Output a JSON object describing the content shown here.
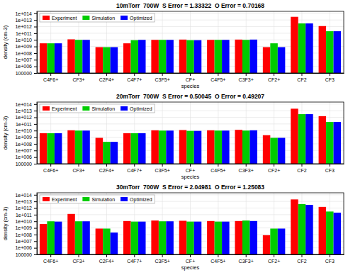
{
  "chart_data": [
    {
      "type": "bar",
      "title": "10mTorr  700W  S Error = 1.33322  O Error = 0.70168",
      "categories": [
        "C4F6+",
        "CF3+",
        "C2F4+",
        "C4F7+",
        "C3F5+",
        "CF+",
        "C4F5+",
        "C3F3+",
        "CF2+",
        "CF2",
        "CF3"
      ],
      "series": [
        {
          "name": "Experiment",
          "color": "#ff0000",
          "values": [
            3000000000.0,
            12000000000.0,
            800000000.0,
            3000000000.0,
            10000000000.0,
            11000000000.0,
            10000000000.0,
            11000000000.0,
            800000000.0,
            30000000000000.0,
            1200000000000.0
          ]
        },
        {
          "name": "Simulation",
          "color": "#00cc00",
          "values": [
            3000000000.0,
            10000000000.0,
            800000000.0,
            9000000000.0,
            10000000000.0,
            9000000000.0,
            10000000000.0,
            10000000000.0,
            3000000000.0,
            3000000000000.0,
            200000000000.0
          ]
        },
        {
          "name": "Optimized",
          "color": "#0000ff",
          "values": [
            3000000000.0,
            10000000000.0,
            800000000.0,
            10000000000.0,
            10000000000.0,
            9000000000.0,
            10000000000.0,
            11000000000.0,
            800000000.0,
            3000000000000.0,
            200000000000.0
          ]
        }
      ],
      "xlabel": "species",
      "ylabel": "density (cm-3)",
      "log": "y",
      "ylim": [
        100000,
        200000000000000
      ],
      "yticks": [
        100000,
        {
          "value": 1000000,
          "label": "1e+006"
        },
        {
          "value": 10000000,
          "label": "1e+007"
        },
        {
          "value": 100000000,
          "label": "1e+008"
        },
        {
          "value": 1000000000,
          "label": "1e+009"
        },
        {
          "value": 10000000000,
          "label": "1e+010"
        },
        {
          "value": 100000000000,
          "label": "1e+011"
        },
        {
          "value": 1000000000000,
          "label": "1e+012"
        },
        {
          "value": 10000000000000,
          "label": "1e+013"
        },
        {
          "value": 100000000000000,
          "label": "1e+014"
        }
      ],
      "grid": true,
      "legend": "upper left"
    },
    {
      "type": "bar",
      "title": "20mTorr  700W  S Error = 0.50045  O Error = 0.49207",
      "categories": [
        "C4F6+",
        "CF3+",
        "C2F4+",
        "C4F7+",
        "C3F5+",
        "CF+",
        "C4F5+",
        "C3F3+",
        "CF2+",
        "CF2",
        "CF3"
      ],
      "series": [
        {
          "name": "Experiment",
          "color": "#ff0000",
          "values": [
            4000000000.0,
            11000000000.0,
            800000000.0,
            4000000000.0,
            11000000000.0,
            12000000000.0,
            11000000000.0,
            13000000000.0,
            2000000000.0,
            20000000000000.0,
            1500000000000.0
          ]
        },
        {
          "name": "Simulation",
          "color": "#00cc00",
          "values": [
            4000000000.0,
            10000000000.0,
            200000000.0,
            4000000000.0,
            10000000000.0,
            9000000000.0,
            10000000000.0,
            10000000000.0,
            800000000.0,
            3000000000000.0,
            200000000000.0
          ]
        },
        {
          "name": "Optimized",
          "color": "#0000ff",
          "values": [
            4000000000.0,
            10000000000.0,
            200000000.0,
            4000000000.0,
            10000000000.0,
            9000000000.0,
            10000000000.0,
            11000000000.0,
            800000000.0,
            3000000000000.0,
            200000000000.0
          ]
        }
      ],
      "xlabel": "species",
      "ylabel": "density (cm-3)",
      "log": "y",
      "ylim": [
        100000,
        200000000000000
      ],
      "yticks": [
        100000,
        {
          "value": 1000000,
          "label": "1e+006"
        },
        {
          "value": 10000000,
          "label": "1e+007"
        },
        {
          "value": 100000000,
          "label": "1e+008"
        },
        {
          "value": 1000000000,
          "label": "1e+009"
        },
        {
          "value": 10000000000,
          "label": "1e+010"
        },
        {
          "value": 100000000000,
          "label": "1e+011"
        },
        {
          "value": 1000000000000,
          "label": "1e+012"
        },
        {
          "value": 10000000000000,
          "label": "1e+013"
        },
        {
          "value": 100000000000000,
          "label": "1e+014"
        }
      ],
      "grid": true,
      "legend": "upper left"
    },
    {
      "type": "bar",
      "title": "30mTorr  700W  S Error = 2.04981  O Error = 1.25083",
      "categories": [
        "C4F6+",
        "CF3+",
        "C2F4+",
        "C4F7+",
        "C3F5+",
        "CF+",
        "C4F5+",
        "C3F3+",
        "CF2+",
        "CF2",
        "CF3"
      ],
      "series": [
        {
          "name": "Experiment",
          "color": "#ff0000",
          "values": [
            4000000000.0,
            130000000000.0,
            800000000.0,
            11000000000.0,
            13000000000.0,
            12000000000.0,
            11000000000.0,
            11000000000.0,
            80000000.0,
            20000000000000.0,
            1500000000000.0
          ]
        },
        {
          "name": "Simulation",
          "color": "#00cc00",
          "values": [
            10000000000.0,
            10000000000.0,
            800000000.0,
            9000000000.0,
            10000000000.0,
            9000000000.0,
            9000000000.0,
            13000000000.0,
            800000000.0,
            4000000000000.0,
            300000000000.0
          ]
        },
        {
          "name": "Optimized",
          "color": "#0000ff",
          "values": [
            9000000000.0,
            10000000000.0,
            200000000.0,
            9000000000.0,
            10000000000.0,
            9000000000.0,
            9000000000.0,
            11000000000.0,
            800000000.0,
            3000000000000.0,
            200000000000.0
          ]
        }
      ],
      "xlabel": "species",
      "ylabel": "density (cm-3)",
      "log": "y",
      "ylim": [
        100000,
        200000000000000
      ],
      "yticks": [
        100000,
        {
          "value": 1000000,
          "label": "1e+006"
        },
        {
          "value": 10000000,
          "label": "1e+007"
        },
        {
          "value": 100000000,
          "label": "1e+008"
        },
        {
          "value": 1000000000,
          "label": "1e+009"
        },
        {
          "value": 10000000000,
          "label": "1e+010"
        },
        {
          "value": 100000000000,
          "label": "1e+011"
        },
        {
          "value": 1000000000000,
          "label": "1e+012"
        },
        {
          "value": 10000000000000,
          "label": "1e+013"
        },
        {
          "value": 100000000000000,
          "label": "1e+014"
        }
      ],
      "grid": true,
      "legend": "upper left"
    }
  ]
}
